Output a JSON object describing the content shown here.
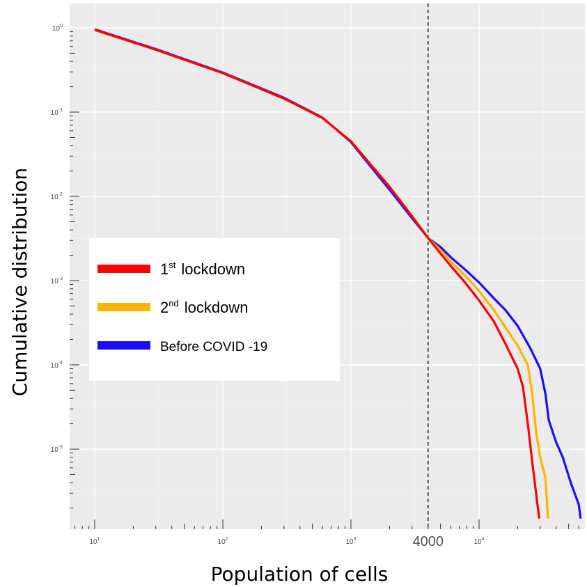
{
  "chart_data": {
    "type": "line",
    "xlabel": "Population of cells",
    "ylabel": "Cumulative distribution",
    "x_scale": "log",
    "y_scale": "log",
    "xlim": [
      10,
      80000
    ],
    "ylim": [
      1.5e-06,
      1.0
    ],
    "grid": true,
    "background": "#ebebeb",
    "x_ticks": [
      {
        "value": 10,
        "base": "10",
        "exp": "1"
      },
      {
        "value": 100,
        "base": "10",
        "exp": "2"
      },
      {
        "value": 1000,
        "base": "10",
        "exp": "3"
      },
      {
        "value": 10000,
        "base": "10",
        "exp": "4"
      }
    ],
    "y_ticks": [
      {
        "value": 1,
        "base": "10",
        "exp": "0"
      },
      {
        "value": 0.1,
        "base": "10",
        "exp": "-1"
      },
      {
        "value": 0.01,
        "base": "10",
        "exp": "-2"
      },
      {
        "value": 0.001,
        "base": "10",
        "exp": "-3"
      },
      {
        "value": 0.0001,
        "base": "10",
        "exp": "-4"
      },
      {
        "value": 1e-05,
        "base": "10",
        "exp": "-5"
      }
    ],
    "reference_line": {
      "x": 4000,
      "label": "4000",
      "style": "dashed"
    },
    "legend_position": "center-left",
    "series": [
      {
        "legend_main": "1",
        "legend_sup": "st",
        "legend_rest": "lockdown",
        "color": "#ff0000",
        "points": [
          [
            10,
            0.95
          ],
          [
            30,
            0.55
          ],
          [
            100,
            0.29
          ],
          [
            300,
            0.145
          ],
          [
            600,
            0.085
          ],
          [
            1000,
            0.045
          ],
          [
            2000,
            0.013
          ],
          [
            3000,
            0.0058
          ],
          [
            4000,
            0.0032
          ],
          [
            5000,
            0.0021
          ],
          [
            6000,
            0.0015
          ],
          [
            8000,
            0.0009
          ],
          [
            10000,
            0.00058
          ],
          [
            13000,
            0.00033
          ],
          [
            16000,
            0.00018
          ],
          [
            20000,
            9e-05
          ],
          [
            22000,
            5.5e-05
          ],
          [
            24000,
            2e-05
          ],
          [
            26000,
            7e-06
          ],
          [
            28000,
            2.8e-06
          ],
          [
            29500,
            1.5e-06
          ]
        ]
      },
      {
        "legend_main": "2",
        "legend_sup": "nd",
        "legend_rest": "lockdown",
        "color": "#ffb300",
        "points": [
          [
            10,
            0.94
          ],
          [
            30,
            0.55
          ],
          [
            100,
            0.29
          ],
          [
            300,
            0.145
          ],
          [
            600,
            0.085
          ],
          [
            1000,
            0.045
          ],
          [
            2000,
            0.013
          ],
          [
            3000,
            0.0058
          ],
          [
            4000,
            0.0032
          ],
          [
            5000,
            0.0023
          ],
          [
            6000,
            0.0017
          ],
          [
            8000,
            0.0011
          ],
          [
            10000,
            0.00075
          ],
          [
            13000,
            0.00045
          ],
          [
            16000,
            0.00028
          ],
          [
            20000,
            0.00017
          ],
          [
            24000,
            0.0001
          ],
          [
            26000,
            4.5e-05
          ],
          [
            28000,
            1.5e-05
          ],
          [
            30000,
            8e-06
          ],
          [
            33000,
            4.5e-06
          ],
          [
            34500,
            1.5e-06
          ]
        ]
      },
      {
        "legend_main": "Before COVID  -19",
        "legend_sup": "",
        "legend_rest": "",
        "color": "#1a0dff",
        "points": [
          [
            10,
            0.96
          ],
          [
            30,
            0.56
          ],
          [
            100,
            0.295
          ],
          [
            300,
            0.148
          ],
          [
            600,
            0.086
          ],
          [
            1000,
            0.044
          ],
          [
            2000,
            0.012
          ],
          [
            3000,
            0.0055
          ],
          [
            4000,
            0.0032
          ],
          [
            5000,
            0.0025
          ],
          [
            6000,
            0.0019
          ],
          [
            8000,
            0.0013
          ],
          [
            10000,
            0.00095
          ],
          [
            13000,
            0.00062
          ],
          [
            16000,
            0.00045
          ],
          [
            20000,
            0.00029
          ],
          [
            25000,
            0.00016
          ],
          [
            30000,
            9e-05
          ],
          [
            33000,
            4.5e-05
          ],
          [
            35000,
            2.2e-05
          ],
          [
            40000,
            1.2e-05
          ],
          [
            45000,
            8e-06
          ],
          [
            52000,
            4e-06
          ],
          [
            60000,
            2.2e-06
          ],
          [
            62000,
            1.5e-06
          ]
        ]
      }
    ]
  }
}
